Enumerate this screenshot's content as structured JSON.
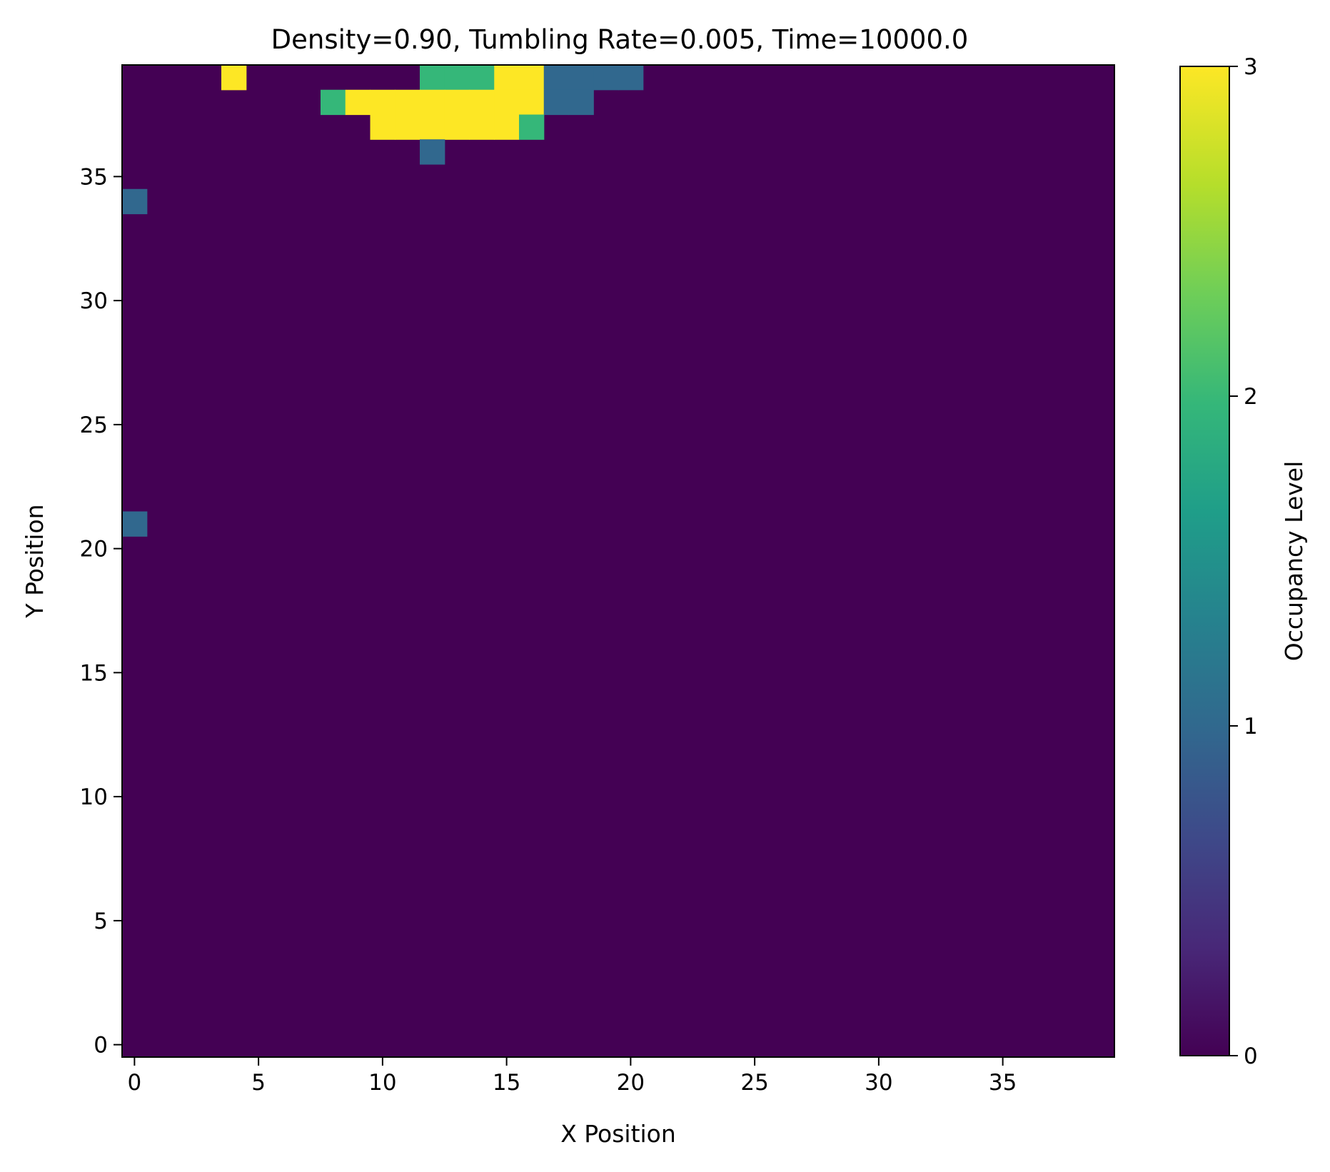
{
  "chart_data": {
    "type": "heatmap",
    "title": "Density=0.90, Tumbling Rate=0.005, Time=10000.0",
    "xlabel": "X Position",
    "ylabel": "Y Position",
    "colorbar_label": "Occupancy Level",
    "colormap": "viridis",
    "value_range": [
      0,
      3
    ],
    "colorbar_ticks": [
      "0",
      "1",
      "2",
      "3"
    ],
    "level_colors": [
      "#440154",
      "#31688e",
      "#35b779",
      "#fde725"
    ],
    "x_ticks": [
      "0",
      "5",
      "10",
      "15",
      "20",
      "25",
      "30",
      "35"
    ],
    "y_ticks": [
      "0",
      "5",
      "10",
      "15",
      "20",
      "25",
      "30",
      "35"
    ],
    "grid_size": [
      40,
      40
    ],
    "grid": [
      "0000300000002223311110000000000000000000",
      "0000000023333333311000000000000000000000",
      "0000000000333333200000000000000000000000",
      "0000000000001000000000000000000000000000",
      "0000000000000000000000000000000000000000",
      "1000000000000000000000000000000000000000",
      "0000000000000000000000000000000000000000",
      "0000000000000000000000000000000000000000",
      "0000000000000000000000000000000000000000",
      "0000000000000000000000000000000000000000",
      "0000000000000000000000000000000000000000",
      "0000000000000000000000000000000000000000",
      "0000000000000000000000000000000000000000",
      "0000000000000000000000000000000000000000",
      "0000000000000000000000000000000000000000",
      "0000000000000000000000000000000000000000",
      "0000000000000000000000000000000000000000",
      "0000000000000000000000000000000000000000",
      "1000000000000000000000000000000000000000",
      "0000000000000000000000000000000000000000",
      "0000000000000000000000000000000000000000",
      "0000000000000000000000000000000000000000",
      "0000000000000000000000000000000000000000",
      "0000000000000000000000000000000000000000",
      "0000000000000000000000000000000000000000",
      "0000000000000000000000000000000000000000",
      "0000000000000000000000000000000000000000",
      "0000000000000000000000000000000000000000",
      "0000000000000000000000000000000000000000",
      "0000000000000000000000000000000000000000",
      "0000000000000000000000000000000000000000",
      "0000000000000000000000000000000000000000",
      "0000000000000000000000000000000000000000",
      "0000000000000000000000000000000000000000",
      "0000000000000000000000000000000000000000",
      "0000000000000000000000000000000000000000",
      "0000000000000000000000000000000000000000",
      "0000000000000000000000000000000000000000",
      "0000000000000000000000000000000000000000",
      "0000000000000000000000000000000000000000"
    ]
  }
}
